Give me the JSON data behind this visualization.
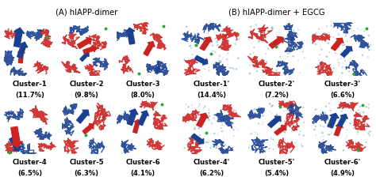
{
  "title_A": "(A) hIAPP-dimer",
  "title_B": "(B) hIAPP-dimer + EGCG",
  "clusters_A": [
    {
      "label": "Cluster-1",
      "pct": "(11.7%)"
    },
    {
      "label": "Cluster-2",
      "pct": "(9.8%)"
    },
    {
      "label": "Cluster-3",
      "pct": "(8.0%)"
    },
    {
      "label": "Cluster-4",
      "pct": "(6.5%)"
    },
    {
      "label": "Cluster-5",
      "pct": "(6.3%)"
    },
    {
      "label": "Cluster-6",
      "pct": "(4.1%)"
    }
  ],
  "clusters_B": [
    {
      "label": "Cluster-1'",
      "pct": "(14.4%)"
    },
    {
      "label": "Cluster-2'",
      "pct": "(7.2%)"
    },
    {
      "label": "Cluster-3'",
      "pct": "(6.6%)"
    },
    {
      "label": "Cluster-4'",
      "pct": "(6.2%)"
    },
    {
      "label": "Cluster-5'",
      "pct": "(5.4%)"
    },
    {
      "label": "Cluster-6'",
      "pct": "(4.9%)"
    }
  ],
  "label_fontsize": 6.0,
  "title_fontsize": 7.2,
  "figsize": [
    4.74,
    2.24
  ],
  "dpi": 100
}
